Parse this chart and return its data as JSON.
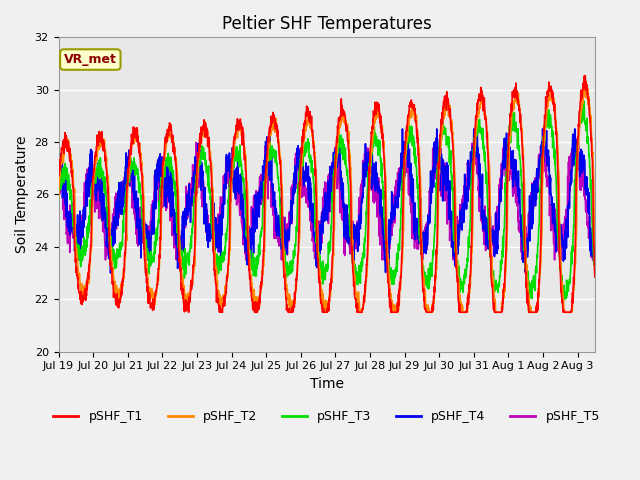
{
  "title": "Peltier SHF Temperatures",
  "xlabel": "Time",
  "ylabel": "Soil Temperature",
  "ylim": [
    20,
    32
  ],
  "xlim": [
    0,
    15.5
  ],
  "xtick_positions": [
    0,
    1,
    2,
    3,
    4,
    5,
    6,
    7,
    8,
    9,
    10,
    11,
    12,
    13,
    14,
    15
  ],
  "xtick_labels": [
    "Jul 19",
    "Jul 20",
    "Jul 21",
    "Jul 22",
    "Jul 23",
    "Jul 24",
    "Jul 25",
    "Jul 26",
    "Jul 27",
    "Jul 28",
    "Jul 29",
    "Jul 30",
    "Jul 31",
    "Aug 1",
    "Aug 2",
    "Aug 3"
  ],
  "ytick_values": [
    20,
    22,
    24,
    26,
    28,
    30,
    32
  ],
  "series_colors": {
    "pSHF_T1": "#ff0000",
    "pSHF_T2": "#ff8800",
    "pSHF_T3": "#00dd00",
    "pSHF_T4": "#0000ee",
    "pSHF_T5": "#bb00bb"
  },
  "annotation_text": "VR_met",
  "bg_color": "#e8e8e8",
  "title_fontsize": 12,
  "axis_label_fontsize": 10,
  "tick_fontsize": 8,
  "linewidth": 1.2
}
